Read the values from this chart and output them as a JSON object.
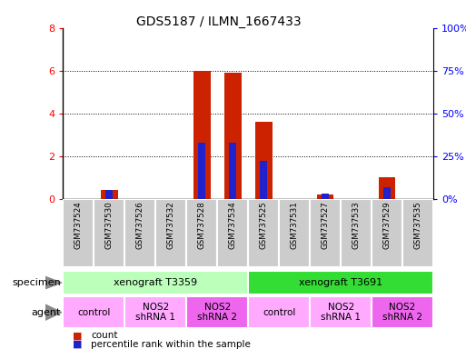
{
  "title": "GDS5187 / ILMN_1667433",
  "samples": [
    "GSM737524",
    "GSM737530",
    "GSM737526",
    "GSM737532",
    "GSM737528",
    "GSM737534",
    "GSM737525",
    "GSM737531",
    "GSM737527",
    "GSM737533",
    "GSM737529",
    "GSM737535"
  ],
  "counts": [
    0,
    0.4,
    0,
    0,
    6.0,
    5.9,
    3.6,
    0,
    0.2,
    0,
    1.0,
    0
  ],
  "percentile_ranks": [
    0,
    5,
    0,
    0,
    33,
    33,
    22,
    0,
    3,
    0,
    7,
    0
  ],
  "ylim_left": [
    0,
    8
  ],
  "ylim_right": [
    0,
    100
  ],
  "yticks_left": [
    0,
    2,
    4,
    6,
    8
  ],
  "yticks_right": [
    0,
    25,
    50,
    75,
    100
  ],
  "ytick_labels_right": [
    "0%",
    "25%",
    "50%",
    "75%",
    "100%"
  ],
  "bar_color_count": "#cc2200",
  "bar_color_pct": "#2222cc",
  "specimen_groups": [
    {
      "label": "xenograft T3359",
      "start": 0,
      "end": 6,
      "color": "#bbffbb"
    },
    {
      "label": "xenograft T3691",
      "start": 6,
      "end": 12,
      "color": "#33dd33"
    }
  ],
  "agent_groups": [
    {
      "label": "control",
      "start": 0,
      "end": 2,
      "color": "#ffaaff"
    },
    {
      "label": "NOS2\nshRNA 1",
      "start": 2,
      "end": 4,
      "color": "#ffaaff"
    },
    {
      "label": "NOS2\nshRNA 2",
      "start": 4,
      "end": 6,
      "color": "#ee66ee"
    },
    {
      "label": "control",
      "start": 6,
      "end": 8,
      "color": "#ffaaff"
    },
    {
      "label": "NOS2\nshRNA 1",
      "start": 8,
      "end": 10,
      "color": "#ffaaff"
    },
    {
      "label": "NOS2\nshRNA 2",
      "start": 10,
      "end": 12,
      "color": "#ee66ee"
    }
  ],
  "legend_count_label": "count",
  "legend_pct_label": "percentile rank within the sample",
  "specimen_label": "specimen",
  "agent_label": "agent",
  "bg_color": "#ffffff",
  "bar_width": 0.55,
  "pct_bar_width": 0.25,
  "sample_box_color": "#cccccc",
  "sample_box_edge": "#ffffff"
}
